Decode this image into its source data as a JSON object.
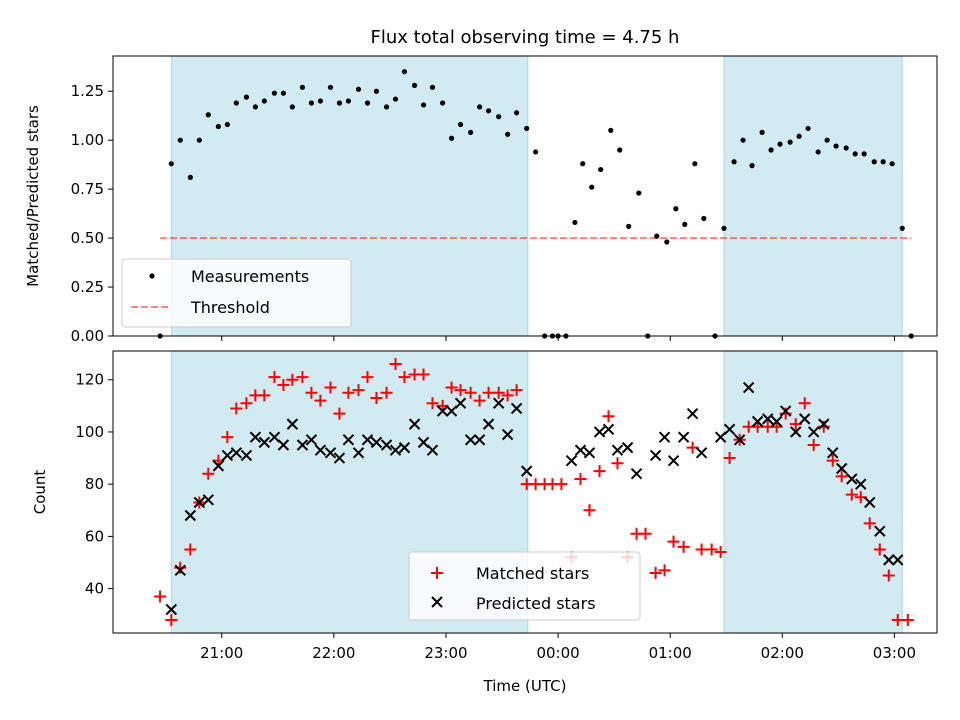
{
  "figure": {
    "title": "Flux total observing time = 4.75 h",
    "x_label": "Time (UTC)",
    "x_ticks": [
      "21:00",
      "22:00",
      "23:00",
      "00:00",
      "01:00",
      "02:00",
      "03:00"
    ],
    "x_tick_hours": [
      21,
      22,
      23,
      24,
      25,
      26,
      27
    ],
    "x_range_hours": [
      20.03,
      27.38
    ],
    "shaded_intervals_hours": [
      [
        20.55,
        23.73
      ],
      [
        25.48,
        27.07
      ]
    ],
    "colors": {
      "shade": "#add8e6",
      "measurements": "#000000",
      "threshold": "#ff0000",
      "matched": "#ff0000",
      "predicted": "#000000"
    }
  },
  "chart_data": [
    {
      "type": "scatter",
      "ylabel": "Matched/Predicted stars",
      "ylim": [
        0,
        1.43
      ],
      "y_ticks": [
        "0.00",
        "0.25",
        "0.50",
        "0.75",
        "1.00",
        "1.25"
      ],
      "y_tick_values": [
        0,
        0.25,
        0.5,
        0.75,
        1.0,
        1.25
      ],
      "legend": {
        "placement": "lower-left",
        "entries": [
          "Measurements",
          "Threshold"
        ]
      },
      "threshold": {
        "name": "Threshold",
        "y": 0.5,
        "x_range_hours": [
          20.45,
          27.15
        ]
      },
      "series": [
        {
          "name": "Measurements",
          "marker": "dot",
          "points": [
            [
              20.45,
              0.0
            ],
            [
              20.55,
              0.88
            ],
            [
              20.63,
              1.0
            ],
            [
              20.72,
              0.81
            ],
            [
              20.8,
              1.0
            ],
            [
              20.88,
              1.13
            ],
            [
              20.97,
              1.07
            ],
            [
              21.05,
              1.08
            ],
            [
              21.13,
              1.19
            ],
            [
              21.22,
              1.22
            ],
            [
              21.3,
              1.17
            ],
            [
              21.38,
              1.2
            ],
            [
              21.47,
              1.24
            ],
            [
              21.55,
              1.24
            ],
            [
              21.63,
              1.17
            ],
            [
              21.72,
              1.27
            ],
            [
              21.8,
              1.19
            ],
            [
              21.88,
              1.2
            ],
            [
              21.97,
              1.27
            ],
            [
              22.05,
              1.19
            ],
            [
              22.13,
              1.2
            ],
            [
              22.22,
              1.26
            ],
            [
              22.3,
              1.19
            ],
            [
              22.38,
              1.25
            ],
            [
              22.47,
              1.17
            ],
            [
              22.55,
              1.21
            ],
            [
              22.63,
              1.35
            ],
            [
              22.72,
              1.28
            ],
            [
              22.8,
              1.18
            ],
            [
              22.88,
              1.27
            ],
            [
              22.97,
              1.19
            ],
            [
              23.05,
              1.01
            ],
            [
              23.13,
              1.08
            ],
            [
              23.22,
              1.04
            ],
            [
              23.3,
              1.17
            ],
            [
              23.38,
              1.15
            ],
            [
              23.47,
              1.12
            ],
            [
              23.55,
              1.03
            ],
            [
              23.63,
              1.14
            ],
            [
              23.72,
              1.06
            ],
            [
              23.8,
              0.94
            ],
            [
              23.88,
              0.0
            ],
            [
              23.95,
              0.0
            ],
            [
              24.0,
              0.0
            ],
            [
              24.07,
              0.0
            ],
            [
              24.15,
              0.58
            ],
            [
              24.22,
              0.88
            ],
            [
              24.3,
              0.76
            ],
            [
              24.38,
              0.85
            ],
            [
              24.47,
              1.05
            ],
            [
              24.55,
              0.95
            ],
            [
              24.63,
              0.56
            ],
            [
              24.72,
              0.73
            ],
            [
              24.8,
              0.0
            ],
            [
              24.88,
              0.51
            ],
            [
              24.97,
              0.48
            ],
            [
              25.05,
              0.65
            ],
            [
              25.13,
              0.57
            ],
            [
              25.22,
              0.88
            ],
            [
              25.3,
              0.6
            ],
            [
              25.4,
              0.0
            ],
            [
              25.48,
              0.55
            ],
            [
              25.57,
              0.89
            ],
            [
              25.65,
              1.0
            ],
            [
              25.73,
              0.87
            ],
            [
              25.82,
              1.04
            ],
            [
              25.9,
              0.95
            ],
            [
              25.98,
              0.98
            ],
            [
              26.07,
              0.99
            ],
            [
              26.15,
              1.02
            ],
            [
              26.23,
              1.06
            ],
            [
              26.32,
              0.94
            ],
            [
              26.4,
              1.0
            ],
            [
              26.48,
              0.97
            ],
            [
              26.57,
              0.96
            ],
            [
              26.65,
              0.93
            ],
            [
              26.73,
              0.93
            ],
            [
              26.82,
              0.89
            ],
            [
              26.9,
              0.89
            ],
            [
              26.98,
              0.88
            ],
            [
              27.07,
              0.55
            ],
            [
              27.15,
              0.0
            ]
          ]
        }
      ]
    },
    {
      "type": "scatter",
      "ylabel": "Count",
      "ylim": [
        23,
        131
      ],
      "y_ticks": [
        "40",
        "60",
        "80",
        "100",
        "120"
      ],
      "y_tick_values": [
        40,
        60,
        80,
        100,
        120
      ],
      "legend": {
        "placement": "lower-center",
        "entries": [
          "Matched stars",
          "Predicted stars"
        ]
      },
      "series": [
        {
          "name": "Matched stars",
          "marker": "plus",
          "points": [
            [
              20.45,
              37
            ],
            [
              20.55,
              28
            ],
            [
              20.63,
              48
            ],
            [
              20.72,
              55
            ],
            [
              20.8,
              73
            ],
            [
              20.88,
              84
            ],
            [
              20.97,
              89
            ],
            [
              21.05,
              98
            ],
            [
              21.13,
              109
            ],
            [
              21.22,
              111
            ],
            [
              21.3,
              114
            ],
            [
              21.38,
              114
            ],
            [
              21.47,
              121
            ],
            [
              21.55,
              118
            ],
            [
              21.63,
              120
            ],
            [
              21.72,
              121
            ],
            [
              21.8,
              115
            ],
            [
              21.88,
              112
            ],
            [
              21.97,
              117
            ],
            [
              22.05,
              107
            ],
            [
              22.13,
              115
            ],
            [
              22.22,
              116
            ],
            [
              22.3,
              121
            ],
            [
              22.38,
              113
            ],
            [
              22.47,
              115
            ],
            [
              22.55,
              126
            ],
            [
              22.63,
              121
            ],
            [
              22.72,
              122
            ],
            [
              22.8,
              122
            ],
            [
              22.88,
              111
            ],
            [
              22.97,
              110
            ],
            [
              23.05,
              117
            ],
            [
              23.13,
              116
            ],
            [
              23.22,
              115
            ],
            [
              23.3,
              112
            ],
            [
              23.38,
              115
            ],
            [
              23.47,
              115
            ],
            [
              23.55,
              114
            ],
            [
              23.63,
              116
            ],
            [
              23.72,
              80
            ],
            [
              23.8,
              80
            ],
            [
              23.88,
              80
            ],
            [
              23.95,
              80
            ],
            [
              24.03,
              80
            ],
            [
              24.12,
              52
            ],
            [
              24.2,
              82
            ],
            [
              24.28,
              70
            ],
            [
              24.37,
              85
            ],
            [
              24.45,
              106
            ],
            [
              24.53,
              88
            ],
            [
              24.62,
              52
            ],
            [
              24.7,
              61
            ],
            [
              24.78,
              61
            ],
            [
              24.87,
              46
            ],
            [
              24.95,
              47
            ],
            [
              25.03,
              58
            ],
            [
              25.12,
              56
            ],
            [
              25.2,
              94
            ],
            [
              25.28,
              55
            ],
            [
              25.37,
              55
            ],
            [
              25.45,
              54
            ],
            [
              25.53,
              90
            ],
            [
              25.62,
              97
            ],
            [
              25.7,
              102
            ],
            [
              25.78,
              102
            ],
            [
              25.87,
              102
            ],
            [
              25.95,
              102
            ],
            [
              26.03,
              107
            ],
            [
              26.12,
              103
            ],
            [
              26.2,
              111
            ],
            [
              26.28,
              95
            ],
            [
              26.37,
              102
            ],
            [
              26.45,
              89
            ],
            [
              26.53,
              83
            ],
            [
              26.62,
              76
            ],
            [
              26.7,
              75
            ],
            [
              26.78,
              65
            ],
            [
              26.87,
              55
            ],
            [
              26.95,
              45
            ],
            [
              27.03,
              28
            ],
            [
              27.12,
              28
            ]
          ]
        },
        {
          "name": "Predicted stars",
          "marker": "x",
          "points": [
            [
              20.55,
              32
            ],
            [
              20.63,
              47
            ],
            [
              20.72,
              68
            ],
            [
              20.8,
              73
            ],
            [
              20.88,
              74
            ],
            [
              20.97,
              87
            ],
            [
              21.05,
              91
            ],
            [
              21.13,
              92
            ],
            [
              21.22,
              91
            ],
            [
              21.3,
              98
            ],
            [
              21.38,
              96
            ],
            [
              21.47,
              98
            ],
            [
              21.55,
              95
            ],
            [
              21.63,
              103
            ],
            [
              21.72,
              95
            ],
            [
              21.8,
              97
            ],
            [
              21.88,
              93
            ],
            [
              21.97,
              92
            ],
            [
              22.05,
              90
            ],
            [
              22.13,
              97
            ],
            [
              22.22,
              92
            ],
            [
              22.3,
              97
            ],
            [
              22.38,
              96
            ],
            [
              22.47,
              95
            ],
            [
              22.55,
              93
            ],
            [
              22.63,
              94
            ],
            [
              22.72,
              103
            ],
            [
              22.8,
              96
            ],
            [
              22.88,
              93
            ],
            [
              22.97,
              108
            ],
            [
              23.05,
              108
            ],
            [
              23.13,
              111
            ],
            [
              23.22,
              97
            ],
            [
              23.3,
              97
            ],
            [
              23.38,
              103
            ],
            [
              23.47,
              111
            ],
            [
              23.55,
              99
            ],
            [
              23.63,
              109
            ],
            [
              23.72,
              85
            ],
            [
              24.12,
              89
            ],
            [
              24.2,
              93
            ],
            [
              24.28,
              92
            ],
            [
              24.37,
              100
            ],
            [
              24.45,
              101
            ],
            [
              24.53,
              93
            ],
            [
              24.62,
              94
            ],
            [
              24.7,
              84
            ],
            [
              24.87,
              91
            ],
            [
              24.95,
              98
            ],
            [
              25.03,
              89
            ],
            [
              25.12,
              98
            ],
            [
              25.2,
              107
            ],
            [
              25.28,
              92
            ],
            [
              25.45,
              98
            ],
            [
              25.53,
              101
            ],
            [
              25.62,
              97
            ],
            [
              25.7,
              117
            ],
            [
              25.78,
              104
            ],
            [
              25.87,
              105
            ],
            [
              25.95,
              104
            ],
            [
              26.03,
              108
            ],
            [
              26.12,
              100
            ],
            [
              26.2,
              105
            ],
            [
              26.28,
              100
            ],
            [
              26.37,
              103
            ],
            [
              26.45,
              92
            ],
            [
              26.53,
              86
            ],
            [
              26.62,
              82
            ],
            [
              26.7,
              80
            ],
            [
              26.78,
              73
            ],
            [
              26.87,
              62
            ],
            [
              26.95,
              51
            ],
            [
              27.03,
              51
            ]
          ]
        }
      ]
    }
  ]
}
